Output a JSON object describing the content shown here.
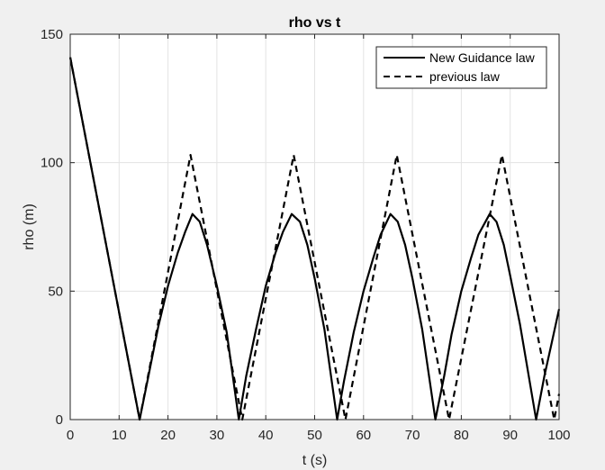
{
  "chart_data": {
    "type": "line",
    "title": "rho vs t",
    "xlabel": "t (s)",
    "ylabel": "rho (m)",
    "xlim": [
      0,
      100
    ],
    "ylim": [
      0,
      150
    ],
    "xticks": [
      0,
      10,
      20,
      30,
      40,
      50,
      60,
      70,
      80,
      90,
      100
    ],
    "yticks": [
      0,
      50,
      100,
      150
    ],
    "grid": true,
    "legend_position": "top-right",
    "series": [
      {
        "name": "New Guidance law",
        "style": "solid",
        "color": "#000000",
        "x": [
          0,
          14.2,
          16,
          18,
          20,
          22,
          23.5,
          25,
          26.5,
          28,
          30,
          32,
          34.5,
          36,
          38,
          40,
          42,
          43.5,
          45.3,
          47,
          48.5,
          50,
          52,
          54.6,
          56,
          58,
          60,
          62,
          63.5,
          65.5,
          67,
          68.5,
          70,
          72,
          74.7,
          76.5,
          78,
          80,
          82,
          83.5,
          85.8,
          87.2,
          88.7,
          90,
          92,
          95.3,
          97,
          98.5,
          100
        ],
        "y": [
          141,
          0,
          17,
          36,
          52,
          65,
          73,
          80,
          77,
          68,
          52,
          34,
          0,
          17,
          35,
          52,
          65,
          73,
          80,
          77,
          68,
          55,
          35,
          0,
          15,
          34,
          50,
          63,
          72,
          80,
          77,
          68,
          55,
          35,
          0,
          17,
          33,
          50,
          63,
          72,
          80,
          77,
          68,
          56,
          37,
          0,
          17,
          30,
          43
        ]
      },
      {
        "name": "previous law",
        "style": "dashed",
        "color": "#000000",
        "x": [
          0,
          14.2,
          24.6,
          35.2,
          45.7,
          56.3,
          66.8,
          77.5,
          88.3,
          99,
          100
        ],
        "y": [
          141,
          0,
          103,
          0,
          103,
          0,
          103,
          0,
          103,
          0,
          10
        ]
      }
    ]
  }
}
